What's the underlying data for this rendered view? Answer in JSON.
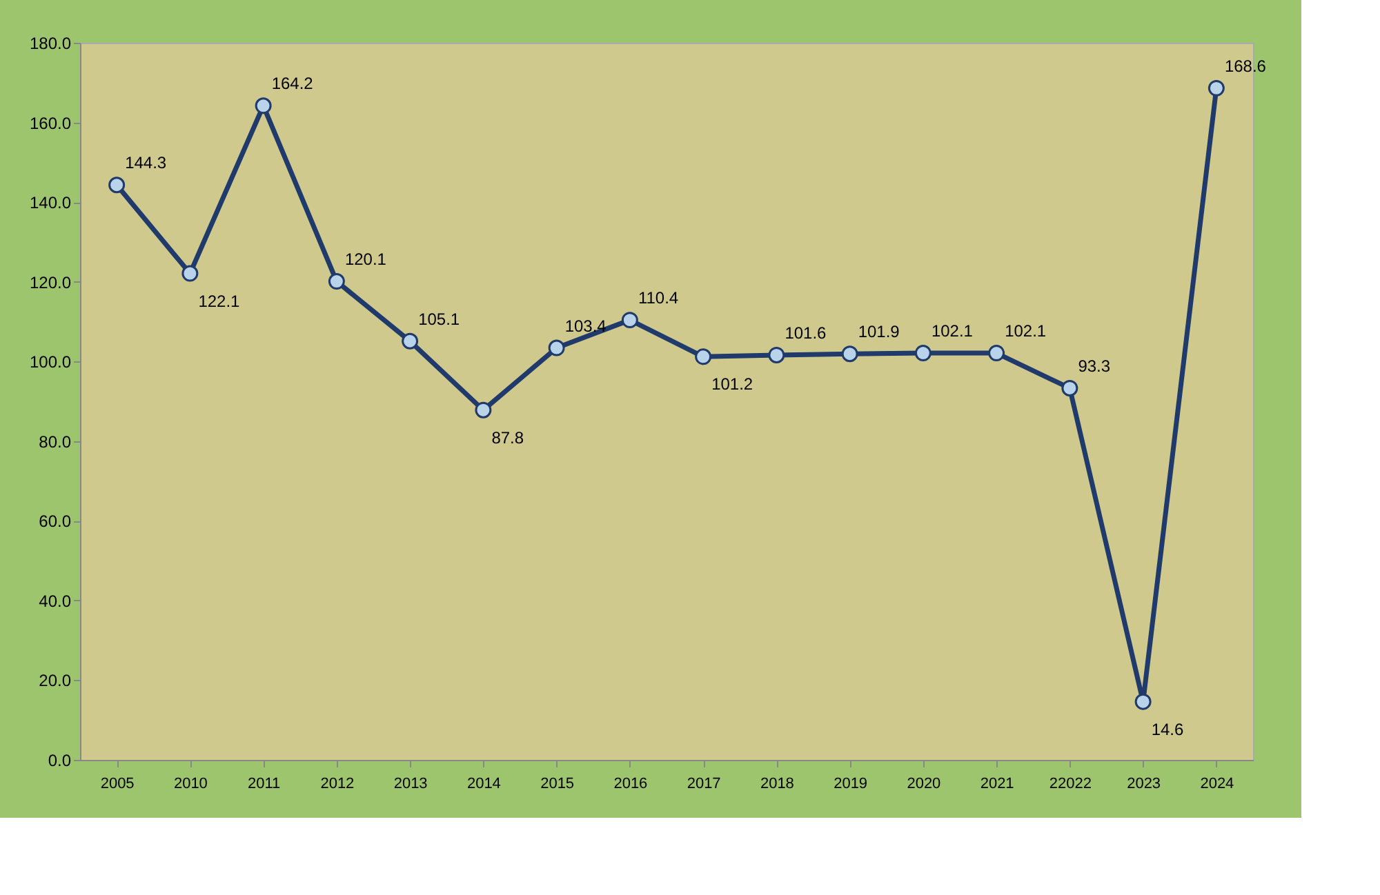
{
  "chart_data": {
    "type": "line",
    "categories": [
      "2005",
      "2010",
      "2011",
      "2012",
      "2013",
      "2014",
      "2015",
      "2016",
      "2017",
      "2018",
      "2019",
      "2020",
      "2021",
      "22022",
      "2023",
      "2024"
    ],
    "series": [
      {
        "color": "#1f3a6b",
        "values": [
          144.3,
          122.1,
          164.2,
          120.1,
          105.1,
          87.8,
          103.4,
          110.4,
          101.2,
          101.6,
          101.9,
          102.1,
          102.1,
          93.3,
          14.6,
          168.6
        ]
      }
    ],
    "ylim": [
      0,
      180
    ],
    "yticks": [
      {
        "value": 0,
        "label": "0.0"
      },
      {
        "value": 20,
        "label": "20.0"
      },
      {
        "value": 40,
        "label": "40.0"
      },
      {
        "value": 60,
        "label": "60.0"
      },
      {
        "value": 80,
        "label": "80.0"
      },
      {
        "value": 100,
        "label": "100.0"
      },
      {
        "value": 120,
        "label": "120.0"
      },
      {
        "value": 140,
        "label": "140.0"
      },
      {
        "value": 160,
        "label": "160.0"
      },
      {
        "value": 180,
        "label": "180.0"
      }
    ],
    "data_labels": true,
    "grid": false,
    "marker": "circle",
    "line_style": "solid"
  }
}
